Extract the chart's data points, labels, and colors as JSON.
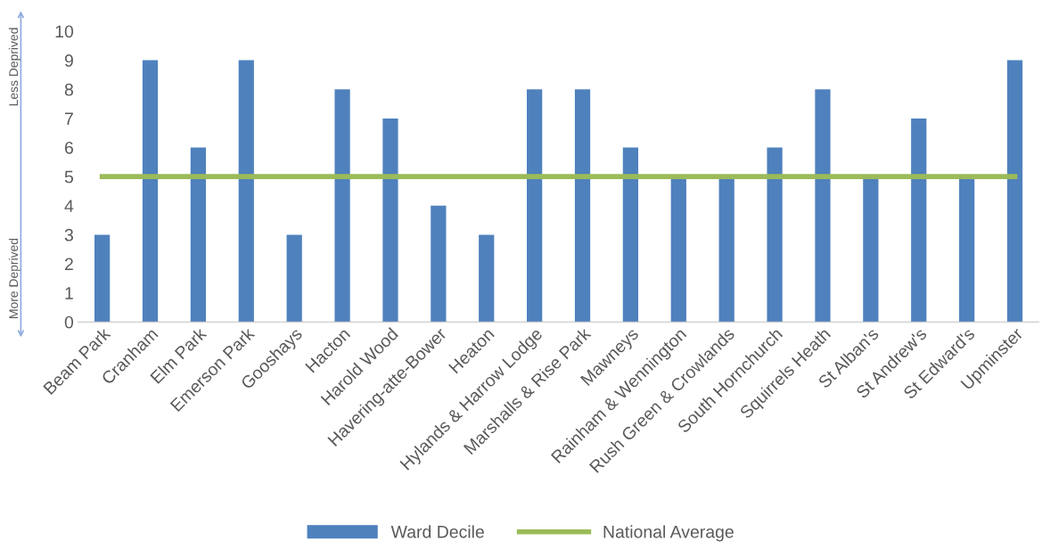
{
  "chart_data": {
    "type": "bar",
    "categories": [
      "Beam Park",
      "Cranham",
      "Elm Park",
      "Emerson Park",
      "Gooshays",
      "Hacton",
      "Harold Wood",
      "Havering-atte-Bower",
      "Heaton",
      "Hylands & Harrow Lodge",
      "Marshalls & Rise Park",
      "Mawneys",
      "Rainham & Wennington",
      "Rush Green & Crowlands",
      "South Hornchurch",
      "Squirrels Heath",
      "St Alban's",
      "St Andrew's",
      "St Edward's",
      "Upminster"
    ],
    "series": [
      {
        "name": "Ward Decile",
        "color": "#4f81bd",
        "values": [
          3,
          9,
          6,
          9,
          3,
          8,
          7,
          4,
          3,
          8,
          8,
          6,
          5,
          5,
          6,
          8,
          5,
          7,
          5,
          9
        ]
      },
      {
        "name": "National Average",
        "type": "line",
        "color": "#9bbb59",
        "values": [
          5,
          5,
          5,
          5,
          5,
          5,
          5,
          5,
          5,
          5,
          5,
          5,
          5,
          5,
          5,
          5,
          5,
          5,
          5,
          5
        ]
      }
    ],
    "ylim": [
      0,
      10
    ],
    "yticks": [
      0,
      1,
      2,
      3,
      4,
      5,
      6,
      7,
      8,
      9,
      10
    ],
    "grid": false,
    "legend": "bottom",
    "marker": "none",
    "line_style": "solid",
    "annotations": [
      "Less Deprived",
      "More Deprived"
    ]
  }
}
